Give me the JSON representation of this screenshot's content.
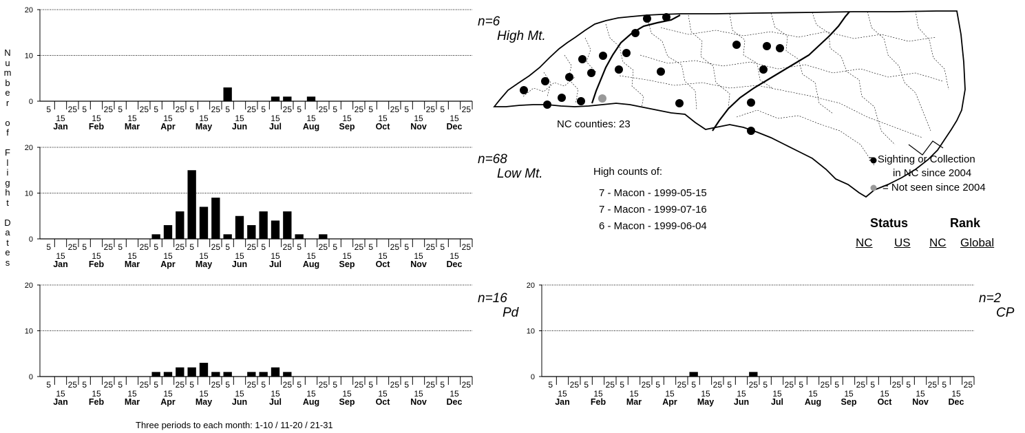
{
  "y_axis_title": [
    "N",
    "u",
    "m",
    "b",
    "e",
    "r",
    "",
    "o",
    "f",
    "",
    "F",
    "l",
    "i",
    "g",
    "h",
    "t",
    "",
    "D",
    "a",
    "t",
    "e",
    "s"
  ],
  "footnote": "Three periods to each month: 1-10 / 11-20 / 21-31",
  "period_labels": [
    "5",
    "15",
    "25"
  ],
  "chart_data": [
    {
      "type": "bar",
      "n_label": "n=6",
      "region_label": "High Mt.",
      "ylim": [
        0,
        20
      ],
      "yticks": [
        0,
        10,
        20
      ],
      "grid": true,
      "months": [
        "Jan",
        "Feb",
        "Mar",
        "Apr",
        "May",
        "Jun",
        "Jul",
        "Aug",
        "Sep",
        "Oct",
        "Nov",
        "Dec"
      ],
      "values": [
        0,
        0,
        0,
        0,
        0,
        0,
        0,
        0,
        0,
        0,
        0,
        0,
        0,
        0,
        0,
        3,
        0,
        0,
        0,
        1,
        1,
        0,
        1,
        0,
        0,
        0,
        0,
        0,
        0,
        0,
        0,
        0,
        0,
        0,
        0,
        0
      ]
    },
    {
      "type": "bar",
      "n_label": "n=68",
      "region_label": "Low Mt.",
      "ylim": [
        0,
        20
      ],
      "yticks": [
        0,
        10,
        20
      ],
      "grid": true,
      "months": [
        "Jan",
        "Feb",
        "Mar",
        "Apr",
        "May",
        "Jun",
        "Jul",
        "Aug",
        "Sep",
        "Oct",
        "Nov",
        "Dec"
      ],
      "values": [
        0,
        0,
        0,
        0,
        0,
        0,
        0,
        0,
        0,
        1,
        3,
        6,
        15,
        7,
        9,
        1,
        5,
        3,
        6,
        4,
        6,
        1,
        0,
        1,
        0,
        0,
        0,
        0,
        0,
        0,
        0,
        0,
        0,
        0,
        0,
        0
      ]
    },
    {
      "type": "bar",
      "n_label": "n=16",
      "region_label": "Pd",
      "ylim": [
        0,
        20
      ],
      "yticks": [
        0,
        10,
        20
      ],
      "grid": true,
      "months": [
        "Jan",
        "Feb",
        "Mar",
        "Apr",
        "May",
        "Jun",
        "Jul",
        "Aug",
        "Sep",
        "Oct",
        "Nov",
        "Dec"
      ],
      "values": [
        0,
        0,
        0,
        0,
        0,
        0,
        0,
        0,
        0,
        1,
        1,
        2,
        2,
        3,
        1,
        1,
        0,
        1,
        1,
        2,
        1,
        0,
        0,
        0,
        0,
        0,
        0,
        0,
        0,
        0,
        0,
        0,
        0,
        0,
        0,
        0
      ]
    },
    {
      "type": "bar",
      "n_label": "n=2",
      "region_label": "CP",
      "ylim": [
        0,
        20
      ],
      "yticks": [
        0,
        10,
        20
      ],
      "grid": true,
      "months": [
        "Jan",
        "Feb",
        "Mar",
        "Apr",
        "May",
        "Jun",
        "Jul",
        "Aug",
        "Sep",
        "Oct",
        "Nov",
        "Dec"
      ],
      "values": [
        0,
        0,
        0,
        0,
        0,
        0,
        0,
        0,
        0,
        0,
        0,
        0,
        1,
        0,
        0,
        0,
        0,
        1,
        0,
        0,
        0,
        0,
        0,
        0,
        0,
        0,
        0,
        0,
        0,
        0,
        0,
        0,
        0,
        0,
        0,
        0
      ]
    }
  ],
  "map": {
    "counties_label": "NC counties: 23",
    "dot_color_recent": "#000000",
    "dot_color_old": "#999999"
  },
  "high_counts": {
    "title": "High counts of:",
    "lines": [
      "7 - Macon - 1999-05-15",
      "7 - Macon - 1999-07-16",
      "6 - Macon - 1999-06-04"
    ]
  },
  "legend": {
    "recent_line1": "= Sighting or Collection",
    "recent_line2": "in NC since 2004",
    "old": "= Not seen since 2004"
  },
  "status": {
    "status_heading": "Status",
    "rank_heading": "Rank",
    "sub_labels": [
      "NC",
      "US",
      "NC",
      "Global"
    ]
  }
}
